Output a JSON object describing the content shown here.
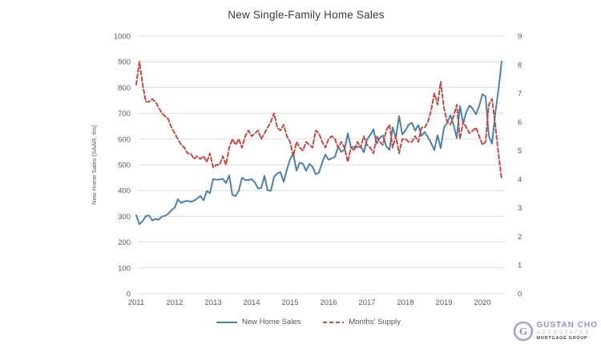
{
  "title": "New Single-Family Home Sales",
  "colors": {
    "line_blue": "#4f81a8",
    "line_red": "#bf4b47",
    "grid": "#dcdcdc",
    "tick_text": "#595959",
    "title_text": "#3d3d3d",
    "logo_purple": "#8f93c4",
    "logo_light_purple": "#b2b5d8",
    "logo_dark": "#4a4a4a"
  },
  "axes": {
    "left": {
      "title": "New Home Sales (SAAR, ths)",
      "tick_labels": [
        0,
        100,
        200,
        300,
        400,
        500,
        600,
        700,
        800,
        900,
        1000
      ],
      "range": [
        0,
        1000
      ]
    },
    "right": {
      "tick_labels": [
        0,
        1,
        2,
        3,
        4,
        5,
        6,
        7,
        8,
        9
      ],
      "range": [
        0,
        9
      ]
    },
    "x": {
      "tick_labels": [
        "2011",
        "2012",
        "2013",
        "2014",
        "2015",
        "2016",
        "2017",
        "2018",
        "2019",
        "2020"
      ]
    }
  },
  "logo": {
    "monogram": "G",
    "name": "GUSTAN CHO",
    "subtitle": "ASSOCIATES",
    "tagline": "MORTGAGE GROUP"
  },
  "chart_data": {
    "type": "line",
    "title": "New Single-Family Home Sales",
    "x_unit": "month",
    "x_start": "2011-01",
    "x_end": "2020-07",
    "x_tick_labels": [
      "2011",
      "2012",
      "2013",
      "2014",
      "2015",
      "2016",
      "2017",
      "2018",
      "2019",
      "2020"
    ],
    "ylabel_left": "New Home Sales (SAAR, ths)",
    "ylim_left": [
      0,
      1000
    ],
    "ylim_right": [
      0,
      9
    ],
    "grid": "horizontal",
    "legend_position": "bottom",
    "series": [
      {
        "name": "New Home Sales",
        "axis": "left",
        "color": "#4f81a8",
        "line_style": "solid",
        "values": [
          304,
          270,
          281,
          301,
          303,
          284,
          290,
          287,
          299,
          302,
          310,
          324,
          334,
          366,
          352,
          358,
          360,
          357,
          360,
          369,
          379,
          362,
          398,
          390,
          445,
          442,
          443,
          446,
          429,
          459,
          383,
          379,
          399,
          450,
          441,
          441,
          444,
          432,
          408,
          410,
          457,
          401,
          399,
          453,
          466,
          472,
          434,
          481,
          521,
          545,
          477,
          508,
          504,
          476,
          503,
          493,
          463,
          470,
          508,
          540,
          520,
          525,
          531,
          570,
          550,
          559,
          622,
          567,
          570,
          568,
          573,
          548,
          599,
          615,
          638,
          582,
          605,
          614,
          571,
          558,
          645,
          604,
          689,
          618,
          633,
          656,
          663,
          633,
          654,
          612,
          627,
          607,
          585,
          557,
          615,
          564,
          644,
          662,
          693,
          656,
          604,
          728,
          661,
          706,
          730,
          717,
          696,
          729,
          774,
          765,
          612,
          582,
          698,
          791,
          901
        ]
      },
      {
        "name": "Months' Supply",
        "axis": "right",
        "color": "#bf4b47",
        "line_style": "dashed",
        "values": [
          7.3,
          8.1,
          7.3,
          6.7,
          6.7,
          6.8,
          6.7,
          6.5,
          6.3,
          6.2,
          6.1,
          5.8,
          5.6,
          5.4,
          5.2,
          5.1,
          4.9,
          4.9,
          4.7,
          4.8,
          4.7,
          4.8,
          4.6,
          4.9,
          4.4,
          4.5,
          4.5,
          4.8,
          4.5,
          5.1,
          5.4,
          5.2,
          5.4,
          5.1,
          5.5,
          5.7,
          5.5,
          5.6,
          5.7,
          5.4,
          5.6,
          5.8,
          6.0,
          6.3,
          5.8,
          5.7,
          5.9,
          5.5,
          5.3,
          4.8,
          5.3,
          5.1,
          5.0,
          5.3,
          5.2,
          5.1,
          5.7,
          5.6,
          5.3,
          5.1,
          5.4,
          5.5,
          5.4,
          5.1,
          5.3,
          5.1,
          4.6,
          5.1,
          5.0,
          5.3,
          5.1,
          5.5,
          5.2,
          5.1,
          4.9,
          5.5,
          5.3,
          5.2,
          5.7,
          5.9,
          5.1,
          5.5,
          4.9,
          5.4,
          5.4,
          5.3,
          5.3,
          5.5,
          5.3,
          5.8,
          5.8,
          6.0,
          6.4,
          7.0,
          6.6,
          7.4,
          6.5,
          6.0,
          5.9,
          6.2,
          6.6,
          5.4,
          6.0,
          5.8,
          5.6,
          5.7,
          5.8,
          5.5,
          5.2,
          5.3,
          6.6,
          6.8,
          5.9,
          4.9,
          4.0
        ]
      }
    ]
  }
}
